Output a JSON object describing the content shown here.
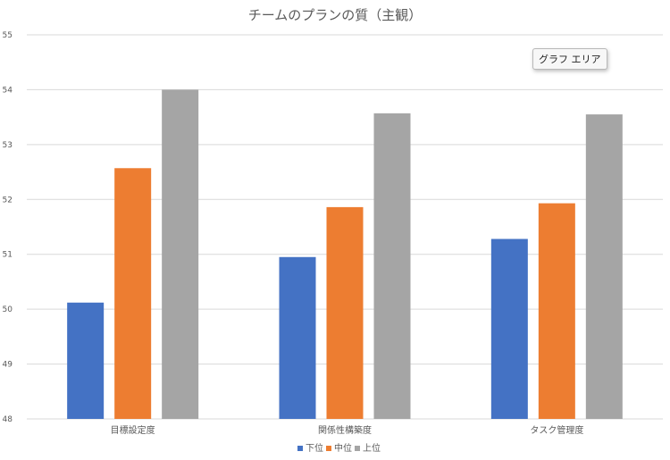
{
  "chart_data": {
    "type": "bar",
    "title": "チームのプランの質（主観）",
    "categories": [
      "目標設定度",
      "関係性構築度",
      "タスク管理度"
    ],
    "series": [
      {
        "name": "下位",
        "color": "#4472c4",
        "values": [
          50.12,
          50.95,
          51.28
        ]
      },
      {
        "name": "中位",
        "color": "#ed7d31",
        "values": [
          52.57,
          51.86,
          51.93
        ]
      },
      {
        "name": "上位",
        "color": "#a5a5a5",
        "values": [
          54.0,
          53.57,
          53.55
        ]
      }
    ],
    "xlabel": "",
    "ylabel": "",
    "ylim": [
      48,
      55
    ],
    "yticks": [
      "48",
      "49",
      "50",
      "51",
      "52",
      "53",
      "54",
      "55"
    ],
    "grid": true,
    "legend_position": "bottom"
  },
  "tooltip": {
    "text": "グラフ エリア"
  }
}
